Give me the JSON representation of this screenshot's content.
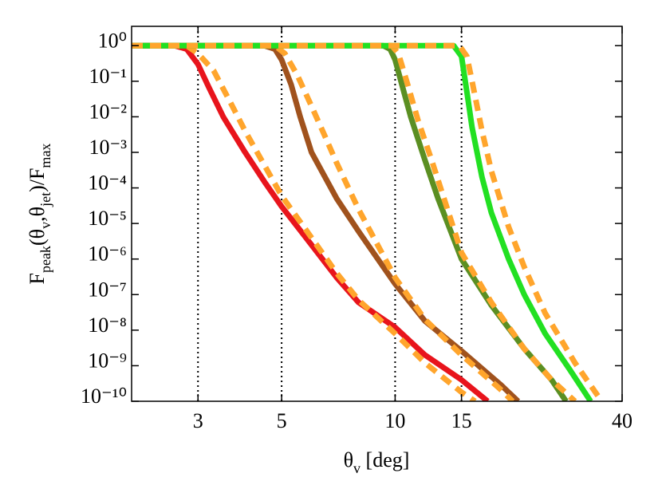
{
  "chart_data": {
    "type": "line",
    "xlabel": [
      {
        "text": "θ"
      },
      {
        "text": "v",
        "sub": true
      },
      {
        "text": " [deg]"
      }
    ],
    "ylabel": [
      {
        "text": "F"
      },
      {
        "text": "peak",
        "sub": true
      },
      {
        "text": "(θ"
      },
      {
        "text": "v",
        "sub": true
      },
      {
        "text": ",θ"
      },
      {
        "text": "jet",
        "sub": true
      },
      {
        "text": ")/F"
      },
      {
        "text": "max",
        "sub": true
      }
    ],
    "xscale": "log",
    "yscale": "log",
    "xlim": [
      2,
      40
    ],
    "ylim": [
      1e-10,
      3.5
    ],
    "xticks": [
      3,
      5,
      10,
      15,
      40
    ],
    "yticks": [
      {
        "value": 1,
        "label": "10⁰"
      },
      {
        "value": 0.1,
        "label": "10⁻¹"
      },
      {
        "value": 0.01,
        "label": "10⁻²"
      },
      {
        "value": 0.001,
        "label": "10⁻³"
      },
      {
        "value": 0.0001,
        "label": "10⁻⁴"
      },
      {
        "value": 1e-05,
        "label": "10⁻⁵"
      },
      {
        "value": 1e-06,
        "label": "10⁻⁶"
      },
      {
        "value": 1e-07,
        "label": "10⁻⁷"
      },
      {
        "value": 1e-08,
        "label": "10⁻⁸"
      },
      {
        "value": 1e-09,
        "label": "10⁻⁹"
      },
      {
        "value": 1e-10,
        "label": "10⁻¹⁰"
      }
    ],
    "vlines": [
      3,
      5,
      10,
      15
    ],
    "series": [
      {
        "color": "#e8141c",
        "dashed": false,
        "x": [
          2,
          2.6,
          2.8,
          3,
          3.2,
          3.5,
          4,
          4.5,
          5,
          6,
          7,
          8,
          10,
          12,
          15,
          17.6
        ],
        "values": [
          1,
          1,
          0.8,
          0.3,
          0.07,
          0.01,
          0.001,
          0.00015,
          3e-05,
          2.5e-06,
          3e-07,
          6e-08,
          1.2e-08,
          2e-09,
          4e-10,
          1e-10
        ]
      },
      {
        "color": "#ffa52c",
        "dashed": true,
        "x": [
          2,
          2.8,
          3,
          3.3,
          3.7,
          4,
          5,
          6,
          7,
          8,
          10,
          12,
          15,
          16.3
        ],
        "values": [
          1,
          1,
          0.6,
          0.2,
          0.02,
          0.004,
          6e-05,
          4e-06,
          4e-07,
          7e-08,
          8e-09,
          1.2e-09,
          1.8e-10,
          1e-10
        ]
      },
      {
        "color": "#a0521d",
        "dashed": false,
        "x": [
          2,
          4.5,
          4.8,
          5,
          5.3,
          5.6,
          6,
          7,
          8,
          10,
          12,
          15,
          19,
          21.2
        ],
        "values": [
          1,
          1,
          0.8,
          0.4,
          0.08,
          0.01,
          0.001,
          5e-05,
          6e-06,
          2e-07,
          1.8e-08,
          2.6e-09,
          3e-10,
          1e-10
        ]
      },
      {
        "color": "#ffa52c",
        "dashed": true,
        "x": [
          2,
          4.8,
          5.1,
          5.5,
          6,
          6.5,
          7,
          8,
          10,
          12,
          15,
          19,
          20.5
        ],
        "values": [
          1,
          1,
          0.6,
          0.15,
          0.02,
          0.003,
          0.0005,
          2.5e-05,
          3e-07,
          2e-08,
          2e-09,
          2.2e-10,
          1e-10
        ]
      },
      {
        "color": "#5b8f22",
        "dashed": false,
        "x": [
          2,
          9.3,
          9.7,
          10,
          10.5,
          11,
          12,
          13,
          15,
          18,
          22,
          26,
          28.4
        ],
        "values": [
          1,
          1,
          0.8,
          0.4,
          0.06,
          0.01,
          0.0006,
          5e-05,
          1e-06,
          5e-08,
          3e-09,
          4e-10,
          1e-10
        ]
      },
      {
        "color": "#ffa52c",
        "dashed": true,
        "x": [
          2,
          9.8,
          10.2,
          10.8,
          11.5,
          12.5,
          15,
          18,
          22,
          26,
          30
        ],
        "values": [
          1,
          1,
          0.6,
          0.08,
          0.008,
          0.0006,
          1.5e-06,
          6e-08,
          3e-09,
          4e-10,
          1e-10
        ]
      },
      {
        "color": "#22e022",
        "dashed": false,
        "x": [
          2,
          14.3,
          15,
          15.5,
          16,
          17,
          18,
          20,
          22,
          25,
          29,
          33
        ],
        "values": [
          1,
          1,
          0.5,
          0.05,
          0.005,
          0.0002,
          2e-05,
          1e-06,
          1e-07,
          8e-09,
          8e-10,
          1e-10
        ]
      },
      {
        "color": "#ffa52c",
        "dashed": true,
        "x": [
          2,
          14.8,
          15.5,
          16,
          17,
          18,
          20,
          22,
          25,
          30,
          35.3
        ],
        "values": [
          1,
          1,
          0.5,
          0.1,
          0.004,
          0.0003,
          8e-06,
          6e-07,
          3e-08,
          1.2e-09,
          1e-10
        ]
      }
    ]
  }
}
